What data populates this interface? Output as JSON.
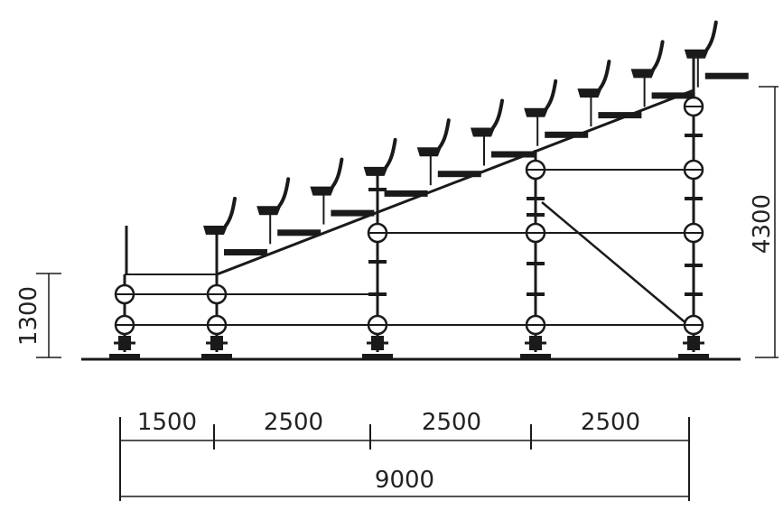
{
  "dimensions": {
    "segments": [
      "1500",
      "2500",
      "2500",
      "2500"
    ],
    "total": "9000",
    "height_left": "1300",
    "height_right": "4300"
  },
  "structure": {
    "seat_rows": 10,
    "columns": 5
  }
}
